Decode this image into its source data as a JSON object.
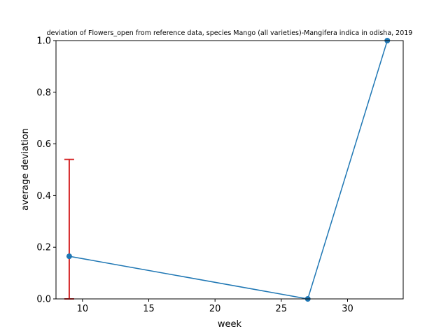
{
  "chart_data": {
    "type": "line",
    "title": "deviation of Flowers_open from reference data, species Mango (all varieties)-Mangifera indica in odisha, 2019",
    "xlabel": "week",
    "ylabel": "average deviation",
    "xlim": [
      8,
      34.2
    ],
    "ylim": [
      0,
      1
    ],
    "xticks": [
      10,
      15,
      20,
      25,
      30
    ],
    "yticks": [
      0.0,
      0.2,
      0.4,
      0.6,
      0.8,
      1.0
    ],
    "ytick_labels": [
      "0.0",
      "0.2",
      "0.4",
      "0.6",
      "0.8",
      "1.0"
    ],
    "grid": false,
    "series": [
      {
        "x": [
          9,
          27,
          33
        ],
        "y": [
          0.165,
          0.0,
          1.0
        ],
        "color": "#1f77b4",
        "marker": "circle"
      }
    ],
    "error_bars": [
      {
        "x": 9,
        "y_low": 0.0,
        "y_high": 0.54,
        "color": "#d62728"
      }
    ]
  }
}
